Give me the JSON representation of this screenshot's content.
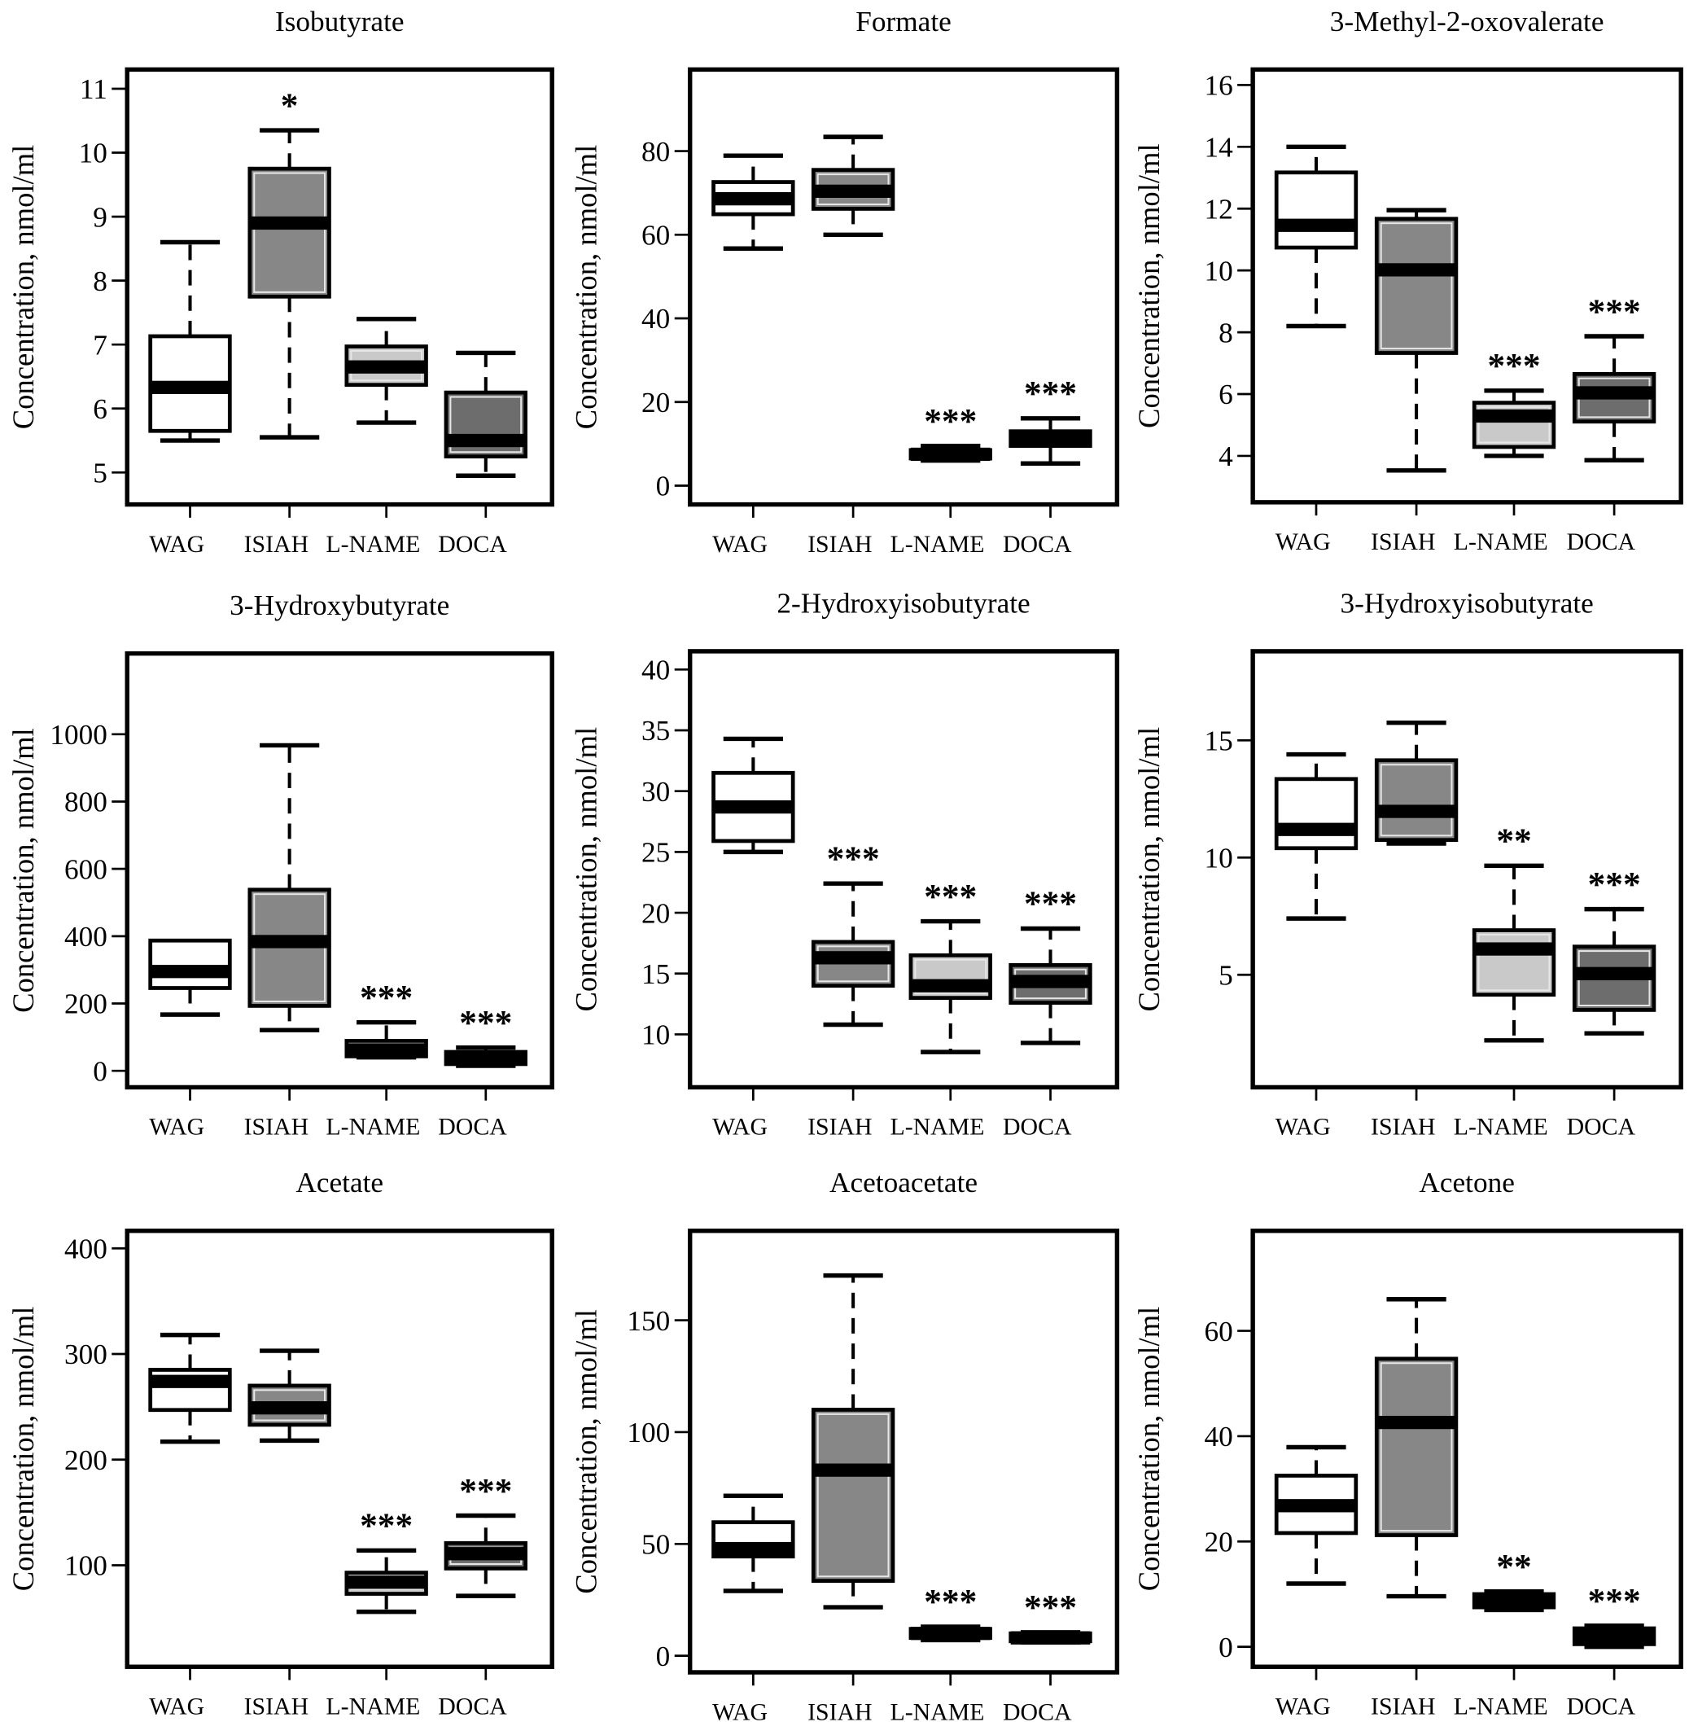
{
  "chart_data": [
    {
      "type": "box",
      "title": "Isobutyrate",
      "ylabel": "Concentration, nmol/ml",
      "categories": [
        "WAG",
        "ISIAH",
        "L-NAME",
        "DOCA"
      ],
      "ylim": [
        4.5,
        11.3
      ],
      "yticks": [
        5,
        6,
        7,
        8,
        9,
        10,
        11
      ],
      "tick_labels": [
        "5",
        "6",
        "7",
        "8",
        "9",
        "10",
        "11"
      ],
      "boxes": [
        {
          "low": 5.5,
          "q1": 5.65,
          "median": 6.33,
          "q3": 7.13,
          "high": 8.6,
          "sig": ""
        },
        {
          "low": 5.55,
          "q1": 7.75,
          "median": 8.9,
          "q3": 9.75,
          "high": 10.35,
          "sig": "*"
        },
        {
          "low": 5.78,
          "q1": 6.37,
          "median": 6.65,
          "q3": 6.97,
          "high": 7.4,
          "sig": ""
        },
        {
          "low": 4.95,
          "q1": 5.25,
          "median": 5.5,
          "q3": 6.25,
          "high": 6.87,
          "sig": ""
        }
      ]
    },
    {
      "type": "box",
      "title": "Formate",
      "ylabel": "Concentration, nmol/ml",
      "categories": [
        "WAG",
        "ISIAH",
        "L-NAME",
        "DOCA"
      ],
      "ylim": [
        -4.5,
        99.5
      ],
      "yticks": [
        0,
        20,
        40,
        60,
        80
      ],
      "tick_labels": [
        "0",
        "20",
        "40",
        "60",
        "80"
      ],
      "boxes": [
        {
          "low": 56.7,
          "q1": 64.9,
          "median": 68.6,
          "q3": 72.6,
          "high": 78.9,
          "sig": ""
        },
        {
          "low": 60,
          "q1": 66.2,
          "median": 70.4,
          "q3": 75.5,
          "high": 83.4,
          "sig": ""
        },
        {
          "low": 6,
          "q1": 6.5,
          "median": 7.5,
          "q3": 8.5,
          "high": 9.5,
          "sig": "***"
        },
        {
          "low": 5.3,
          "q1": 9.5,
          "median": 11.5,
          "q3": 13,
          "high": 16.1,
          "sig": "***"
        }
      ]
    },
    {
      "type": "box",
      "title": "3-Methyl-2-oxovalerate",
      "ylabel": "Concentration, nmol/ml",
      "categories": [
        "WAG",
        "ISIAH",
        "L-NAME",
        "DOCA"
      ],
      "ylim": [
        2.5,
        16.5
      ],
      "yticks": [
        4,
        6,
        8,
        10,
        12,
        14,
        16
      ],
      "tick_labels": [
        "4",
        "6",
        "8",
        "10",
        "12",
        "14",
        "16"
      ],
      "boxes": [
        {
          "low": 8.2,
          "q1": 10.74,
          "median": 11.46,
          "q3": 13.17,
          "high": 14,
          "sig": ""
        },
        {
          "low": 3.53,
          "q1": 7.33,
          "median": 10.02,
          "q3": 11.67,
          "high": 11.95,
          "sig": ""
        },
        {
          "low": 4,
          "q1": 4.29,
          "median": 5.29,
          "q3": 5.72,
          "high": 6.11,
          "sig": "***"
        },
        {
          "low": 3.86,
          "q1": 5.11,
          "median": 6.04,
          "q3": 6.65,
          "high": 7.87,
          "sig": "***"
        }
      ]
    },
    {
      "type": "box",
      "title": "3-Hydroxybutyrate",
      "ylabel": "Concentration, nmol/ml",
      "categories": [
        "WAG",
        "ISIAH",
        "L-NAME",
        "DOCA"
      ],
      "ylim": [
        -49,
        1240
      ],
      "yticks": [
        0,
        200,
        400,
        600,
        800,
        1000
      ],
      "tick_labels": [
        "0",
        "200",
        "400",
        "600",
        "800",
        "1000"
      ],
      "boxes": [
        {
          "low": 167,
          "q1": 246,
          "median": 295,
          "q3": 387,
          "high": 387,
          "sig": ""
        },
        {
          "low": 121,
          "q1": 193,
          "median": 384,
          "q3": 538,
          "high": 967,
          "sig": ""
        },
        {
          "low": 40,
          "q1": 43,
          "median": 62,
          "q3": 89,
          "high": 144,
          "sig": "***"
        },
        {
          "low": 15,
          "q1": 20,
          "median": 38,
          "q3": 56,
          "high": 69,
          "sig": "***"
        }
      ]
    },
    {
      "type": "box",
      "title": "2-Hydroxyisobutyrate",
      "ylabel": "Concentration, nmol/ml",
      "categories": [
        "WAG",
        "ISIAH",
        "L-NAME",
        "DOCA"
      ],
      "ylim": [
        5.65,
        41.5
      ],
      "yticks": [
        10,
        15,
        20,
        25,
        30,
        35,
        40
      ],
      "tick_labels": [
        "10",
        "15",
        "20",
        "25",
        "30",
        "35",
        "40"
      ],
      "boxes": [
        {
          "low": 25,
          "q1": 25.9,
          "median": 28.7,
          "q3": 31.5,
          "high": 34.3,
          "sig": ""
        },
        {
          "low": 10.8,
          "q1": 14,
          "median": 16.3,
          "q3": 17.6,
          "high": 22.4,
          "sig": "***"
        },
        {
          "low": 8.55,
          "q1": 13,
          "median": 14,
          "q3": 16.5,
          "high": 19.3,
          "sig": "***"
        },
        {
          "low": 9.3,
          "q1": 12.6,
          "median": 14.35,
          "q3": 15.7,
          "high": 18.7,
          "sig": "***"
        }
      ]
    },
    {
      "type": "box",
      "title": "3-Hydroxyisobutyrate",
      "ylabel": "Concentration, nmol/ml",
      "categories": [
        "WAG",
        "ISIAH",
        "L-NAME",
        "DOCA"
      ],
      "ylim": [
        0.2,
        18.8
      ],
      "yticks": [
        5,
        10,
        15
      ],
      "tick_labels": [
        "5",
        "10",
        "15"
      ],
      "boxes": [
        {
          "low": 7.4,
          "q1": 10.4,
          "median": 11.2,
          "q3": 13.35,
          "high": 14.4,
          "sig": ""
        },
        {
          "low": 10.6,
          "q1": 10.75,
          "median": 11.97,
          "q3": 14.15,
          "high": 15.75,
          "sig": ""
        },
        {
          "low": 2.2,
          "q1": 4.15,
          "median": 6.1,
          "q3": 6.9,
          "high": 9.65,
          "sig": "**"
        },
        {
          "low": 2.5,
          "q1": 3.5,
          "median": 5.05,
          "q3": 6.2,
          "high": 7.8,
          "sig": "***"
        }
      ]
    },
    {
      "type": "box",
      "title": "Acetate",
      "ylabel": "Concentration, nmol/ml",
      "categories": [
        "WAG",
        "ISIAH",
        "L-NAME",
        "DOCA"
      ],
      "ylim": [
        3.9,
        416.6
      ],
      "yticks": [
        100,
        200,
        300,
        400
      ],
      "tick_labels": [
        "100",
        "200",
        "300",
        "400"
      ],
      "boxes": [
        {
          "low": 217,
          "q1": 247,
          "median": 274,
          "q3": 285,
          "high": 318,
          "sig": ""
        },
        {
          "low": 218,
          "q1": 233,
          "median": 249,
          "q3": 270,
          "high": 303,
          "sig": ""
        },
        {
          "low": 56,
          "q1": 73,
          "median": 84,
          "q3": 93,
          "high": 114,
          "sig": "***"
        },
        {
          "low": 71,
          "q1": 97,
          "median": 111,
          "q3": 121,
          "high": 147,
          "sig": "***"
        }
      ]
    },
    {
      "type": "box",
      "title": "Acetoacetate",
      "ylabel": "Concentration, nmol/ml",
      "categories": [
        "WAG",
        "ISIAH",
        "L-NAME",
        "DOCA"
      ],
      "ylim": [
        -7.4,
        190
      ],
      "yticks": [
        0,
        50,
        100,
        150
      ],
      "tick_labels": [
        "0",
        "50",
        "100",
        "150"
      ],
      "boxes": [
        {
          "low": 29,
          "q1": 44.4,
          "median": 47.9,
          "q3": 59.7,
          "high": 71.5,
          "sig": ""
        },
        {
          "low": 21.7,
          "q1": 33.5,
          "median": 83,
          "q3": 110,
          "high": 170,
          "sig": ""
        },
        {
          "low": 7,
          "q1": 8,
          "median": 10,
          "q3": 12,
          "high": 13,
          "sig": "***"
        },
        {
          "low": 6,
          "q1": 6.5,
          "median": 8,
          "q3": 10,
          "high": 10.5,
          "sig": "***"
        }
      ]
    },
    {
      "type": "box",
      "title": "Acetone",
      "ylabel": "Concentration, nmol/ml",
      "categories": [
        "WAG",
        "ISIAH",
        "L-NAME",
        "DOCA"
      ],
      "ylim": [
        -3.8,
        79
      ],
      "yticks": [
        0,
        20,
        40,
        60
      ],
      "tick_labels": [
        "0",
        "20",
        "40",
        "60"
      ],
      "boxes": [
        {
          "low": 12,
          "q1": 21.6,
          "median": 26.8,
          "q3": 32.5,
          "high": 37.9,
          "sig": ""
        },
        {
          "low": 9.6,
          "q1": 21.2,
          "median": 42.6,
          "q3": 54.7,
          "high": 66,
          "sig": ""
        },
        {
          "low": 7,
          "q1": 7.5,
          "median": 8.5,
          "q3": 10,
          "high": 10.5,
          "sig": "**"
        },
        {
          "low": 0,
          "q1": 0.5,
          "median": 2,
          "q3": 3.5,
          "high": 4,
          "sig": "***"
        }
      ]
    }
  ],
  "group_colors": {
    "WAG": "#ffffff",
    "ISIAH": "#878787",
    "L-NAME": "#c9c9c9",
    "DOCA": "#6d6d6d"
  }
}
